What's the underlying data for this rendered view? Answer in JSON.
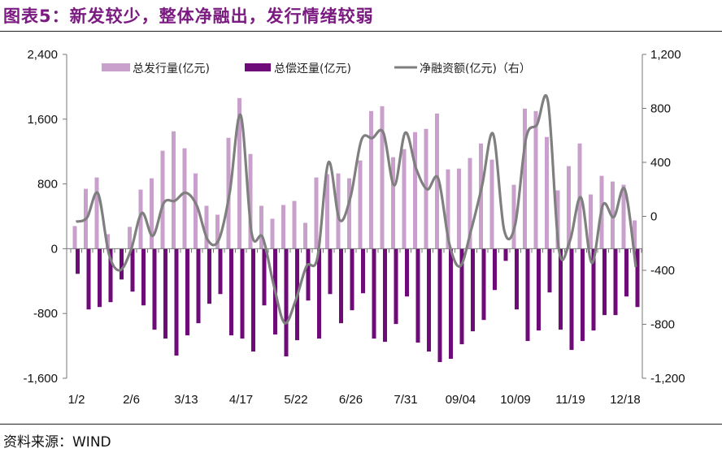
{
  "title": "图表5：新发较少，整体净融出，发行情绪较弱",
  "source": "资料来源：WIND",
  "chart_data": {
    "type": "bar+line",
    "x_tick_labels": {
      "0": "1/2",
      "5": "2/6",
      "10": "3/13",
      "15": "4/17",
      "20": "5/22",
      "25": "6/26",
      "30": "7/31",
      "35": "09/04",
      "40": "10/09",
      "45": "11/19",
      "50": "12/18"
    },
    "n_points": 52,
    "left_axis": {
      "ylim": [
        -1600,
        2400
      ],
      "ticks": [
        -1600,
        -800,
        0,
        800,
        1600,
        2400
      ],
      "tick_labels": [
        "-1,600",
        "-800",
        "0",
        "800",
        "1,600",
        "2,400"
      ]
    },
    "right_axis": {
      "ylim": [
        -1200,
        1200
      ],
      "ticks": [
        -1200,
        -800,
        -400,
        0,
        400,
        800,
        1200
      ],
      "tick_labels": [
        "-1,200",
        "-800",
        "-400",
        "0",
        "400",
        "800",
        "1,200"
      ]
    },
    "legend_position": "top",
    "grid": false,
    "series": [
      {
        "name": "总发行量(亿元)",
        "type": "bar",
        "axis": "left",
        "color": "#c9a0cc",
        "values": [
          280,
          740,
          880,
          180,
          0,
          270,
          730,
          870,
          1210,
          1450,
          1240,
          930,
          530,
          420,
          1370,
          1860,
          1170,
          530,
          370,
          540,
          590,
          320,
          880,
          920,
          930,
          870,
          1090,
          1700,
          1760,
          1130,
          1230,
          1440,
          1480,
          1670,
          980,
          990,
          1120,
          1300,
          1100,
          0,
          790,
          1730,
          1700,
          1380,
          720,
          1020,
          1300,
          670,
          900,
          830,
          790,
          350
        ]
      },
      {
        "name": "总偿还量(亿元)",
        "type": "bar",
        "axis": "left",
        "color": "#6e0b78",
        "values": [
          -310,
          -750,
          -720,
          -660,
          -380,
          -530,
          -700,
          -1000,
          -1110,
          -1320,
          -1070,
          -920,
          -680,
          -560,
          -1070,
          -1110,
          -1270,
          -700,
          -1060,
          -1330,
          -1130,
          -640,
          -1110,
          -560,
          -920,
          -760,
          -550,
          -1110,
          -1150,
          -930,
          -590,
          -1160,
          -1270,
          -1400,
          -1360,
          -1180,
          -1020,
          -880,
          -510,
          -150,
          -750,
          -1140,
          -1010,
          -540,
          -1000,
          -1250,
          -1140,
          -1010,
          -820,
          -820,
          -590,
          -720
        ]
      },
      {
        "name": "净融资额(亿元)（右）",
        "type": "line",
        "axis": "right",
        "color": "#7f7f7f",
        "values": [
          -40,
          -10,
          170,
          -280,
          -400,
          -250,
          25,
          -145,
          100,
          115,
          175,
          80,
          -175,
          -175,
          175,
          750,
          -125,
          -155,
          -505,
          -790,
          -625,
          -370,
          -305,
          400,
          -25,
          140,
          565,
          580,
          620,
          230,
          620,
          350,
          200,
          280,
          -200,
          -370,
          -100,
          230,
          610,
          -100,
          -65,
          580,
          680,
          850,
          -250,
          -180,
          140,
          -345,
          85,
          -5,
          200,
          -375
        ]
      }
    ]
  }
}
